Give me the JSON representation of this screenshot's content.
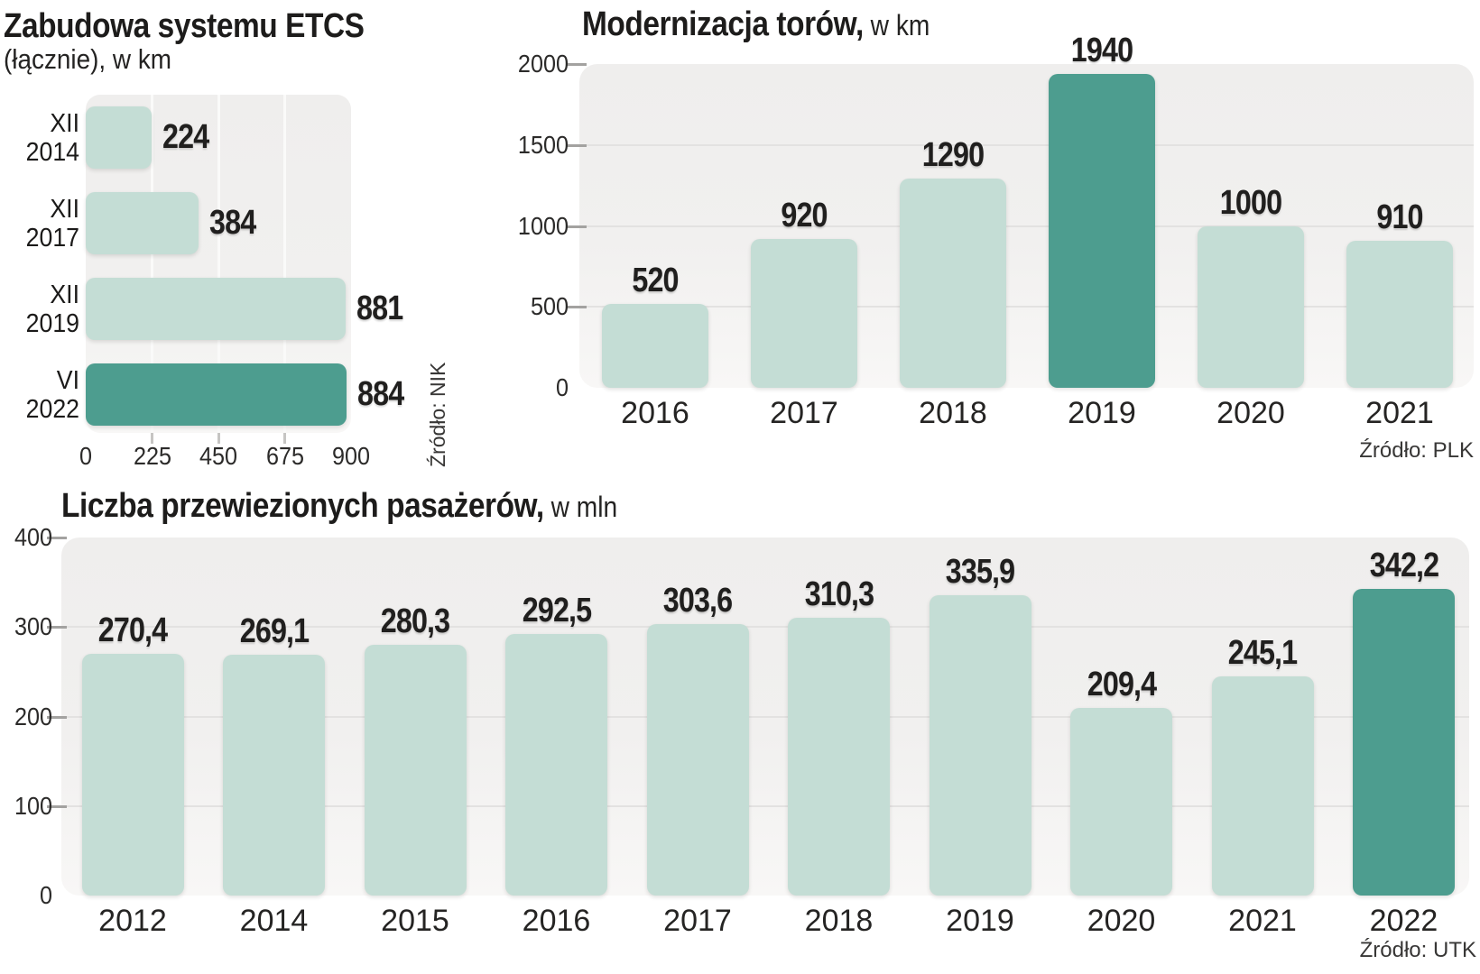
{
  "colors": {
    "bar_light": "#c4ddd5",
    "bar_dark": "#4d9d8f",
    "plot_bg_top": "#efeeed",
    "plot_bg_bottom": "#f8f7f6",
    "text_dark": "#1d1c1b"
  },
  "chart_data": [
    {
      "type": "bar",
      "orientation": "horizontal",
      "title_bold": "Zabudowa systemu ETCS",
      "title_regular": "(łącznie), w km",
      "categories": [
        [
          "XII",
          "2014"
        ],
        [
          "XII",
          "2017"
        ],
        [
          "XII",
          "2019"
        ],
        [
          "VI",
          "2022"
        ]
      ],
      "values": [
        224,
        384,
        881,
        884
      ],
      "value_labels": [
        "224",
        "384",
        "881",
        "884"
      ],
      "axis_ticks": [
        0,
        225,
        450,
        675,
        900
      ],
      "axis_tick_labels": [
        "0",
        "225",
        "450",
        "675",
        "900"
      ],
      "xlim": [
        0,
        900
      ],
      "grid": [
        225,
        450,
        675
      ],
      "highlight_index": 3,
      "legend": "none",
      "source": "Źródło: NIK"
    },
    {
      "type": "bar",
      "orientation": "vertical",
      "title_bold": "Modernizacja torów,",
      "title_regular": " w km",
      "categories": [
        "2016",
        "2017",
        "2018",
        "2019",
        "2020",
        "2021"
      ],
      "values": [
        520,
        920,
        1290,
        1940,
        1000,
        910
      ],
      "value_labels": [
        "520",
        "920",
        "1290",
        "1940",
        "1000",
        "910"
      ],
      "axis_ticks": [
        0,
        500,
        1000,
        1500,
        2000
      ],
      "axis_tick_labels": [
        "0",
        "500",
        "1000",
        "1500",
        "2000"
      ],
      "ylim": [
        0,
        2000
      ],
      "grid": [
        500,
        1000,
        1500
      ],
      "edge_ticks": [
        500,
        1000,
        1500,
        2000
      ],
      "highlight_index": 3,
      "legend": "none",
      "source": "Źródło: PLK"
    },
    {
      "type": "bar",
      "orientation": "vertical",
      "title_bold": "Liczba przewiezionych pasażerów,",
      "title_regular": " w mln",
      "categories": [
        "2012",
        "2014",
        "2015",
        "2016",
        "2017",
        "2018",
        "2019",
        "2020",
        "2021",
        "2022"
      ],
      "values": [
        270.4,
        269.1,
        280.3,
        292.5,
        303.6,
        310.3,
        335.9,
        209.4,
        245.1,
        342.2
      ],
      "value_labels": [
        "270,4",
        "269,1",
        "280,3",
        "292,5",
        "303,6",
        "310,3",
        "335,9",
        "209,4",
        "245,1",
        "342,2"
      ],
      "axis_ticks": [
        0,
        100,
        200,
        300,
        400
      ],
      "axis_tick_labels": [
        "0",
        "100",
        "200",
        "300",
        "400"
      ],
      "ylim": [
        0,
        400
      ],
      "grid": [
        100,
        200,
        300
      ],
      "edge_ticks": [
        100,
        200,
        300,
        400
      ],
      "highlight_index": 9,
      "legend": "none",
      "source": "Źródło: UTK"
    }
  ]
}
